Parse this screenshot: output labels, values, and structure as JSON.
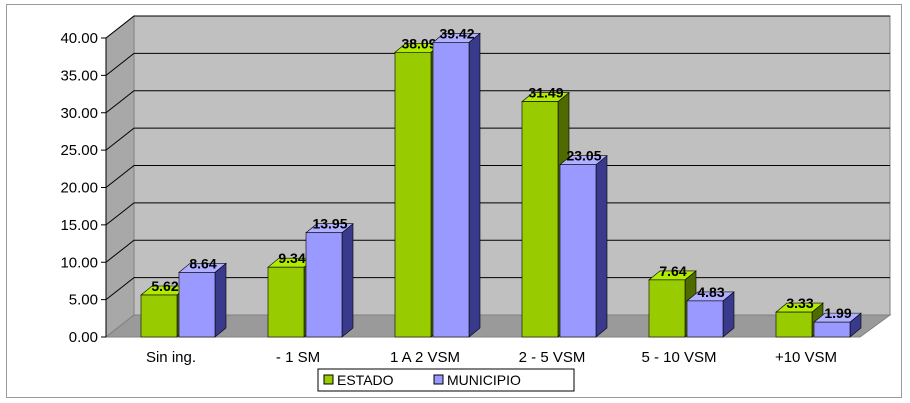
{
  "chart_data": {
    "type": "bar",
    "title": "",
    "xlabel": "",
    "ylabel": "",
    "ylim": [
      0,
      40
    ],
    "yticks": [
      "0.00",
      "5.00",
      "10.00",
      "15.00",
      "20.00",
      "25.00",
      "30.00",
      "35.00",
      "40.00"
    ],
    "categories": [
      "Sin ing.",
      "- 1 SM",
      "1 A 2 VSM",
      "2 - 5 VSM",
      "5 - 10 VSM",
      "+10 VSM"
    ],
    "series": [
      {
        "name": "ESTADO",
        "values": [
          5.62,
          9.34,
          38.09,
          31.49,
          7.64,
          3.33
        ],
        "labels": [
          "5.62",
          "9.34",
          "38.09",
          "31.49",
          "7.64",
          "3.33"
        ],
        "color": "#99cc00"
      },
      {
        "name": "MUNICIPIO",
        "values": [
          8.64,
          13.95,
          39.42,
          23.05,
          4.83,
          1.99
        ],
        "labels": [
          "8.64",
          "13.95",
          "39.42",
          "23.05",
          "4.83",
          "1.99"
        ],
        "color": "#9999ff"
      }
    ],
    "grid": true,
    "three_d": true,
    "wall_color": "#c0c0c0",
    "legend_position": "bottom"
  }
}
